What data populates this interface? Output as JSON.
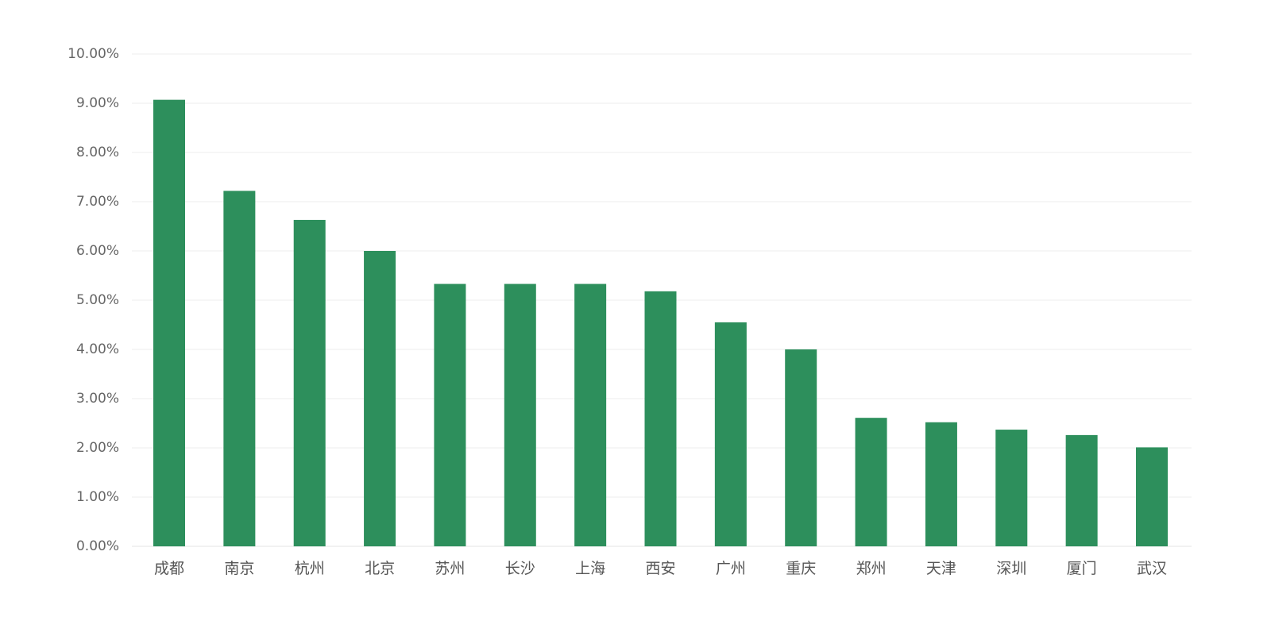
{
  "chart_data": {
    "type": "bar",
    "categories": [
      "成都",
      "南京",
      "杭州",
      "北京",
      "苏州",
      "长沙",
      "上海",
      "西安",
      "广州",
      "重庆",
      "郑州",
      "天津",
      "深圳",
      "厦门",
      "武汉"
    ],
    "values": [
      9.07,
      7.22,
      6.63,
      6.0,
      5.33,
      5.33,
      5.33,
      5.18,
      4.55,
      4.0,
      2.61,
      2.52,
      2.37,
      2.26,
      2.01
    ],
    "value_format": "percent",
    "ylim": [
      0,
      10
    ],
    "yticks": [
      "0.00%",
      "1.00%",
      "2.00%",
      "3.00%",
      "4.00%",
      "5.00%",
      "6.00%",
      "7.00%",
      "8.00%",
      "9.00%",
      "10.00%"
    ],
    "title": "",
    "xlabel": "",
    "ylabel": "",
    "grid": true,
    "legend": "none",
    "colors": {
      "bar": "#2d8f5c",
      "grid": "#ececec",
      "tick_text": "#666666"
    }
  }
}
